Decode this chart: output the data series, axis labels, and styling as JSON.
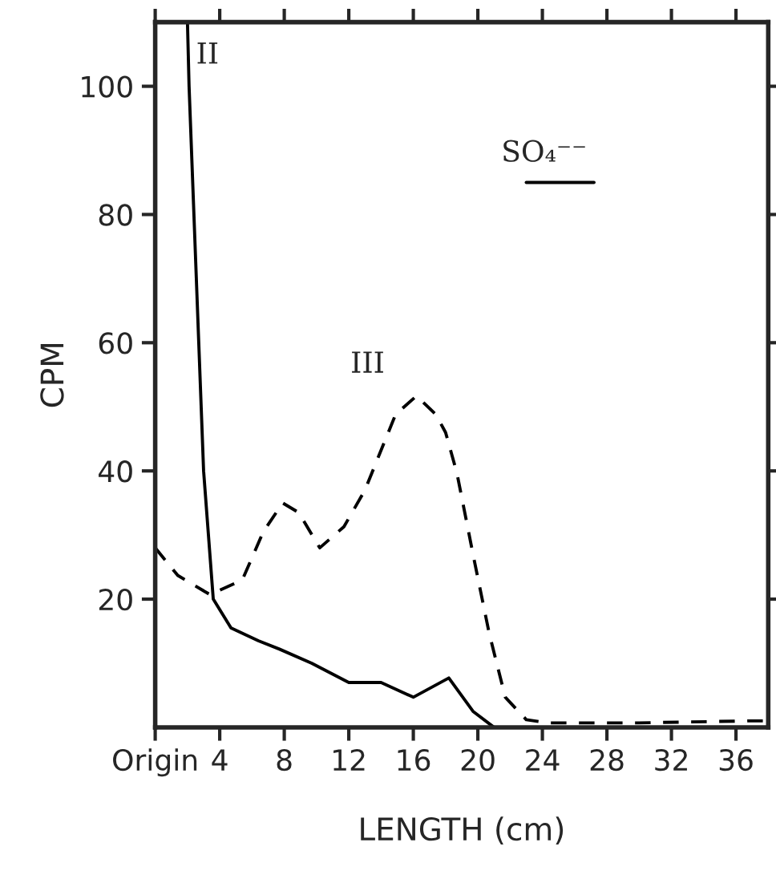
{
  "chart_data": {
    "type": "line",
    "xlabel": "LENGTH (cm)",
    "ylabel": "CPM",
    "xlim": [
      0,
      38
    ],
    "ylim": [
      0,
      110
    ],
    "xticks": [
      {
        "value": 0,
        "label": "Origin"
      },
      4,
      8,
      12,
      16,
      20,
      24,
      28,
      32,
      36
    ],
    "yticks": [
      20,
      40,
      60,
      80,
      100
    ],
    "grid": false,
    "legend": false,
    "series": [
      {
        "name": "II",
        "color": "#000000",
        "line_style": "solid",
        "x": [
          2.0,
          2.1,
          2.4,
          2.7,
          3.0,
          3.6,
          4.7,
          6.4,
          7.7,
          9.7,
          12,
          14,
          16,
          18.2,
          19.7,
          21,
          24
        ],
        "values": [
          110,
          100,
          80,
          60,
          40,
          20,
          15.5,
          13.5,
          12.2,
          10,
          7,
          7,
          4.7,
          7.7,
          2.5,
          0,
          0
        ]
      },
      {
        "name": "III",
        "color": "#000000",
        "line_style": "dashed",
        "x": [
          0,
          1.4,
          3.4,
          5.4,
          6.7,
          7.9,
          8.9,
          10.2,
          11.7,
          13,
          14.9,
          16.2,
          17.4,
          18,
          18.7,
          19.7,
          20.7,
          21.7,
          23,
          24.3,
          30,
          36.7,
          38
        ],
        "values": [
          28,
          23.7,
          20.7,
          23,
          30.5,
          35,
          33.5,
          28,
          31.3,
          37,
          48.8,
          51.7,
          48.8,
          46,
          39.7,
          27,
          14.7,
          4.7,
          1.2,
          0.7,
          0.7,
          1,
          1
        ]
      },
      {
        "name": "SO₄⁻⁻",
        "color": "#000000",
        "line_style": "solid",
        "x": [
          23,
          27.2
        ],
        "values": [
          85,
          85
        ]
      }
    ]
  }
}
